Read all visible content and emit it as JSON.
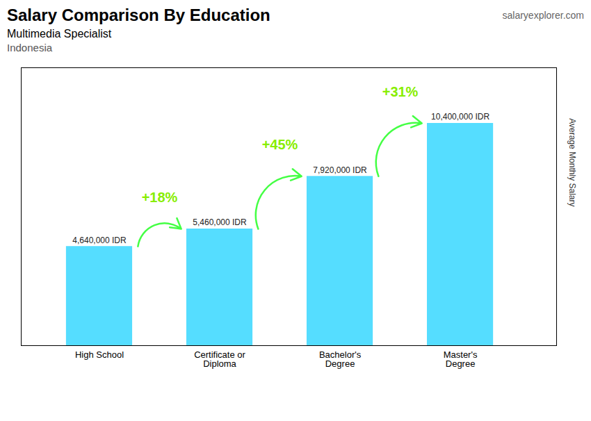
{
  "chart_data": {
    "type": "bar",
    "title": "Salary Comparison By Education",
    "subtitle": "Multimedia Specialist",
    "country": "Indonesia",
    "watermark": "salaryexplorer.com",
    "categories": [
      "High School",
      "Certificate or\nDiploma",
      "Bachelor's\nDegree",
      "Master's\nDegree"
    ],
    "values": [
      4640000,
      5460000,
      7920000,
      10400000
    ],
    "value_labels": [
      "4,640,000 IDR",
      "5,460,000 IDR",
      "7,920,000 IDR",
      "10,400,000 IDR"
    ],
    "data_labels": true,
    "color": "#55ddff",
    "ylabel": "Average Monthly Salary",
    "ylim": [
      0,
      13000000
    ],
    "tick_labels": "x",
    "grid": false,
    "annotations": [
      {
        "text": "+18%",
        "from": "High School",
        "to": "Certificate or\nDiploma",
        "color": "#88ee00",
        "arrow_color": "#44ff44"
      },
      {
        "text": "+45%",
        "from": "Certificate or\nDiploma",
        "to": "Bachelor's\nDegree",
        "color": "#88ee00",
        "arrow_color": "#44ff44"
      },
      {
        "text": "+31%",
        "from": "Bachelor's\nDegree",
        "to": "Master's\nDegree",
        "color": "#88ee00",
        "arrow_color": "#44ff44"
      }
    ]
  }
}
